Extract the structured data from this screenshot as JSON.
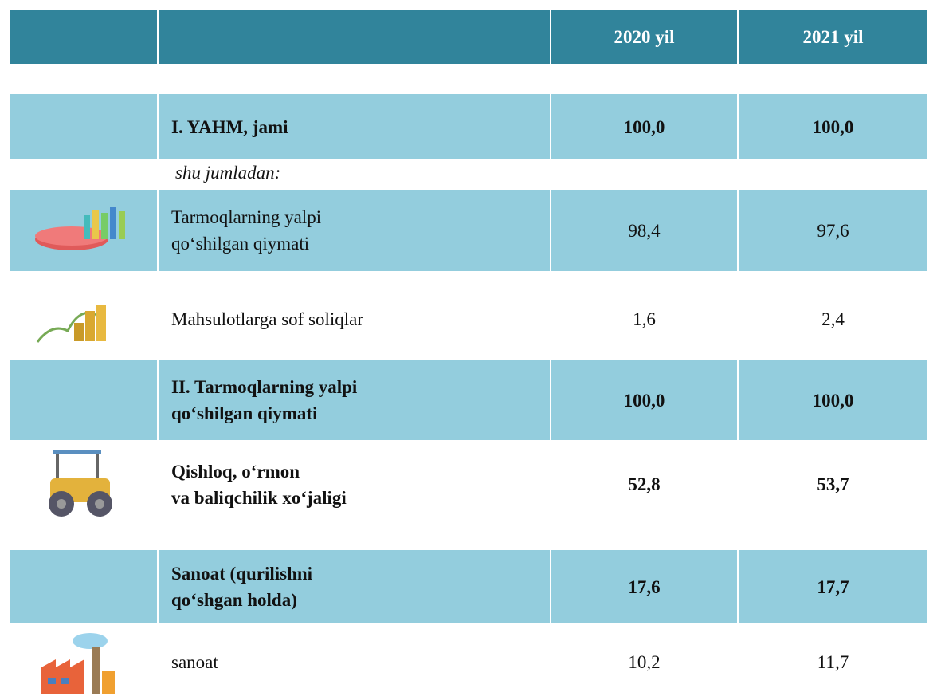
{
  "header": {
    "columns": [
      "2020 yil",
      "2021 yil"
    ]
  },
  "note": "shu jumladan:",
  "rows": [
    {
      "lines": [
        "I. YAHM, jami"
      ],
      "values": [
        "100,0",
        "100,0"
      ]
    },
    {
      "lines": [
        "Tarmoqlarning yalpi",
        "qo‘shilgan qiymati"
      ],
      "values": [
        "98,4",
        "97,6"
      ]
    },
    {
      "lines": [
        "Mahsulotlarga sof soliqlar"
      ],
      "values": [
        "1,6",
        "2,4"
      ]
    },
    {
      "lines": [
        "II. Tarmoqlarning yalpi",
        "qo‘shilgan qiymati"
      ],
      "values": [
        "100,0",
        "100,0"
      ]
    },
    {
      "lines": [
        "Qishloq, o‘rmon",
        "va baliqchilik xo‘jaligi"
      ],
      "values": [
        "52,8",
        "53,7"
      ]
    },
    {
      "lines": [
        "Sanoat (qurilishni",
        "qo‘shgan holda)"
      ],
      "values": [
        "17,6",
        "17,7"
      ]
    },
    {
      "lines": [
        "sanoat"
      ],
      "values": [
        "10,2",
        "11,7"
      ]
    }
  ]
}
